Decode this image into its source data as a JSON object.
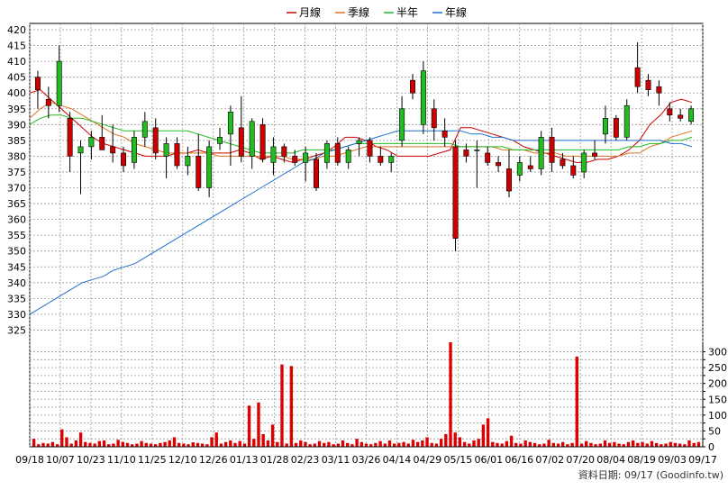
{
  "legend": [
    {
      "label": "月線",
      "color": "#cc0000"
    },
    {
      "label": "季線",
      "color": "#e07020"
    },
    {
      "label": "半年",
      "color": "#22bb22"
    },
    {
      "label": "年線",
      "color": "#1f6fd0"
    }
  ],
  "source_note": "資料日期: 09/17  (Goodinfo.tw)",
  "chart_data": [
    {
      "type": "candlestick",
      "x_tick_labels": [
        "09/18",
        "10/07",
        "10/23",
        "11/10",
        "11/25",
        "12/10",
        "12/26",
        "01/13",
        "01/28",
        "02/23",
        "03/11",
        "03/26",
        "04/14",
        "04/29",
        "05/15",
        "06/01",
        "06/16",
        "07/02",
        "07/20",
        "08/04",
        "08/19",
        "09/03",
        "09/17"
      ],
      "ylim": [
        320,
        422
      ],
      "y_ticks": [
        325,
        330,
        335,
        340,
        345,
        350,
        355,
        360,
        365,
        370,
        375,
        380,
        385,
        390,
        395,
        400,
        405,
        410,
        415,
        420
      ],
      "grid": true,
      "up_color": "#22bb22",
      "down_color": "#cc0000",
      "series": [
        {
          "name": "月線",
          "values": [
            400,
            401,
            398,
            395,
            392,
            389,
            386,
            384,
            383,
            382,
            381,
            380,
            380,
            380,
            381,
            381,
            382,
            381,
            381,
            381,
            382,
            381,
            379,
            380,
            379,
            378,
            379,
            380,
            381,
            383,
            386,
            386,
            385,
            383,
            382,
            380,
            380,
            380,
            380,
            381,
            382,
            389,
            389,
            388,
            387,
            386,
            385,
            383,
            382,
            381,
            380,
            379,
            378,
            378,
            379,
            379,
            380,
            382,
            385,
            390,
            393,
            397,
            398,
            397
          ]
        },
        {
          "name": "季線",
          "values": [
            392,
            395,
            397,
            396,
            395,
            393,
            391,
            389,
            387,
            386,
            384,
            383,
            382,
            381,
            381,
            381,
            381,
            381,
            380,
            380,
            380,
            380,
            380,
            380,
            380,
            379,
            379,
            379,
            380,
            380,
            381,
            382,
            383,
            383,
            383,
            383,
            383,
            383,
            383,
            383,
            383,
            383,
            383,
            383,
            383,
            382,
            382,
            382,
            381,
            381,
            381,
            380,
            380,
            380,
            380,
            380,
            380,
            381,
            381,
            383,
            384,
            386,
            387,
            388
          ]
        },
        {
          "name": "半年",
          "values": [
            390,
            392,
            393,
            393,
            392,
            392,
            391,
            390,
            389,
            388,
            388,
            388,
            388,
            388,
            388,
            388,
            387,
            386,
            385,
            384,
            383,
            382,
            381,
            381,
            381,
            381,
            382,
            382,
            382,
            382,
            383,
            384,
            384,
            384,
            384,
            384,
            384,
            384,
            384,
            384,
            384,
            383,
            383,
            383,
            383,
            383,
            382,
            382,
            382,
            382,
            382,
            382,
            382,
            382,
            382,
            382,
            382,
            383,
            383,
            384,
            384,
            385,
            385,
            386
          ]
        },
        {
          "name": "年線",
          "values": [
            330,
            332,
            334,
            336,
            338,
            340,
            341,
            342,
            344,
            345,
            346,
            348,
            350,
            352,
            354,
            356,
            358,
            360,
            362,
            364,
            366,
            368,
            370,
            372,
            374,
            376,
            378,
            379,
            381,
            382,
            383,
            384,
            385,
            386,
            387,
            388,
            388,
            388,
            388,
            388,
            388,
            388,
            387,
            387,
            386,
            386,
            385,
            385,
            385,
            385,
            385,
            385,
            385,
            385,
            385,
            385,
            385,
            385,
            385,
            385,
            385,
            384,
            384,
            383
          ]
        }
      ],
      "candles": [
        {
          "o": 405,
          "h": 407,
          "l": 395,
          "c": 401
        },
        {
          "o": 398,
          "h": 402,
          "l": 392,
          "c": 396
        },
        {
          "o": 396,
          "h": 415,
          "l": 394,
          "c": 410
        },
        {
          "o": 392,
          "h": 394,
          "l": 375,
          "c": 380
        },
        {
          "o": 381,
          "h": 385,
          "l": 368,
          "c": 383
        },
        {
          "o": 383,
          "h": 388,
          "l": 379,
          "c": 386
        },
        {
          "o": 386,
          "h": 393,
          "l": 382,
          "c": 382
        },
        {
          "o": 383,
          "h": 390,
          "l": 378,
          "c": 381
        },
        {
          "o": 381,
          "h": 383,
          "l": 375,
          "c": 377
        },
        {
          "o": 378,
          "h": 388,
          "l": 376,
          "c": 386
        },
        {
          "o": 386,
          "h": 394,
          "l": 383,
          "c": 391
        },
        {
          "o": 389,
          "h": 392,
          "l": 379,
          "c": 381
        },
        {
          "o": 380,
          "h": 386,
          "l": 373,
          "c": 384
        },
        {
          "o": 384,
          "h": 386,
          "l": 376,
          "c": 377
        },
        {
          "o": 377,
          "h": 383,
          "l": 374,
          "c": 380
        },
        {
          "o": 380,
          "h": 387,
          "l": 369,
          "c": 370
        },
        {
          "o": 370,
          "h": 385,
          "l": 367,
          "c": 383
        },
        {
          "o": 384,
          "h": 389,
          "l": 382,
          "c": 386
        },
        {
          "o": 387,
          "h": 396,
          "l": 377,
          "c": 394
        },
        {
          "o": 389,
          "h": 399,
          "l": 378,
          "c": 380
        },
        {
          "o": 380,
          "h": 392,
          "l": 376,
          "c": 391
        },
        {
          "o": 390,
          "h": 392,
          "l": 378,
          "c": 379
        },
        {
          "o": 378,
          "h": 386,
          "l": 374,
          "c": 383
        },
        {
          "o": 383,
          "h": 384,
          "l": 378,
          "c": 380
        },
        {
          "o": 380,
          "h": 382,
          "l": 377,
          "c": 378
        },
        {
          "o": 378,
          "h": 383,
          "l": 372,
          "c": 381
        },
        {
          "o": 379,
          "h": 381,
          "l": 369,
          "c": 370
        },
        {
          "o": 378,
          "h": 385,
          "l": 376,
          "c": 384
        },
        {
          "o": 384,
          "h": 386,
          "l": 377,
          "c": 378
        },
        {
          "o": 378,
          "h": 383,
          "l": 376,
          "c": 382
        },
        {
          "o": 384,
          "h": 386,
          "l": 380,
          "c": 385
        },
        {
          "o": 385,
          "h": 386,
          "l": 378,
          "c": 380
        },
        {
          "o": 380,
          "h": 383,
          "l": 377,
          "c": 378
        },
        {
          "o": 378,
          "h": 381,
          "l": 375,
          "c": 380
        },
        {
          "o": 385,
          "h": 399,
          "l": 383,
          "c": 395
        },
        {
          "o": 404,
          "h": 406,
          "l": 398,
          "c": 400
        },
        {
          "o": 390,
          "h": 410,
          "l": 387,
          "c": 407
        },
        {
          "o": 395,
          "h": 398,
          "l": 385,
          "c": 389
        },
        {
          "o": 388,
          "h": 392,
          "l": 383,
          "c": 386
        },
        {
          "o": 383,
          "h": 385,
          "l": 350,
          "c": 354
        },
        {
          "o": 382,
          "h": 384,
          "l": 378,
          "c": 380
        },
        {
          "o": 382,
          "h": 385,
          "l": 370,
          "c": 382
        },
        {
          "o": 381,
          "h": 383,
          "l": 377,
          "c": 378
        },
        {
          "o": 378,
          "h": 380,
          "l": 375,
          "c": 377
        },
        {
          "o": 376,
          "h": 382,
          "l": 367,
          "c": 369
        },
        {
          "o": 374,
          "h": 380,
          "l": 372,
          "c": 378
        },
        {
          "o": 377,
          "h": 380,
          "l": 375,
          "c": 376
        },
        {
          "o": 376,
          "h": 388,
          "l": 374,
          "c": 386
        },
        {
          "o": 386,
          "h": 389,
          "l": 375,
          "c": 378
        },
        {
          "o": 379,
          "h": 381,
          "l": 376,
          "c": 377
        },
        {
          "o": 377,
          "h": 380,
          "l": 373,
          "c": 374
        },
        {
          "o": 375,
          "h": 382,
          "l": 373,
          "c": 381
        },
        {
          "o": 381,
          "h": 385,
          "l": 379,
          "c": 380
        },
        {
          "o": 387,
          "h": 396,
          "l": 384,
          "c": 392
        },
        {
          "o": 392,
          "h": 393,
          "l": 385,
          "c": 386
        },
        {
          "o": 386,
          "h": 398,
          "l": 385,
          "c": 396
        },
        {
          "o": 408,
          "h": 416,
          "l": 400,
          "c": 402
        },
        {
          "o": 404,
          "h": 406,
          "l": 399,
          "c": 401
        },
        {
          "o": 402,
          "h": 404,
          "l": 396,
          "c": 400
        },
        {
          "o": 395,
          "h": 397,
          "l": 391,
          "c": 393
        },
        {
          "o": 393,
          "h": 395,
          "l": 391,
          "c": 392
        },
        {
          "o": 391,
          "h": 396,
          "l": 390,
          "c": 395
        }
      ]
    },
    {
      "type": "bar",
      "ylim": [
        0,
        330
      ],
      "y_ticks": [
        0,
        25,
        50,
        75,
        100,
        125,
        150,
        175,
        200,
        225,
        250,
        275,
        300
      ],
      "color": "#dd0000",
      "values": [
        25,
        8,
        12,
        10,
        15,
        8,
        55,
        30,
        10,
        20,
        45,
        15,
        12,
        10,
        18,
        20,
        8,
        10,
        22,
        15,
        12,
        8,
        10,
        18,
        12,
        10,
        8,
        12,
        15,
        20,
        30,
        12,
        10,
        8,
        14,
        12,
        10,
        8,
        30,
        45,
        10,
        15,
        20,
        12,
        18,
        10,
        130,
        25,
        140,
        40,
        20,
        70,
        15,
        260,
        10,
        255,
        12,
        20,
        15,
        8,
        10,
        18,
        12,
        15,
        8,
        10,
        20,
        12,
        8,
        25,
        15,
        10,
        8,
        12,
        18,
        10,
        20,
        10,
        12,
        15,
        10,
        22,
        15,
        20,
        30,
        12,
        10,
        25,
        40,
        330,
        45,
        30,
        15,
        10,
        20,
        25,
        70,
        90,
        15,
        12,
        10,
        18,
        35,
        12,
        10,
        20,
        15,
        12,
        8,
        10,
        22,
        12,
        10,
        15,
        8,
        12,
        285,
        10,
        18,
        12,
        8,
        10,
        20,
        12,
        15,
        10,
        8,
        15,
        20,
        12,
        15,
        10,
        18,
        12,
        8,
        10,
        15,
        12,
        10,
        8,
        20,
        12,
        15
      ]
    }
  ]
}
